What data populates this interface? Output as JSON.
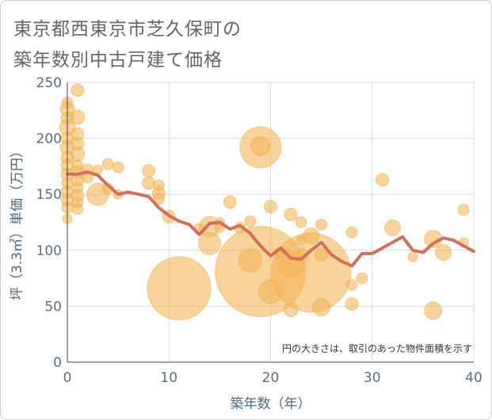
{
  "title_line1": "東京都西東京市芝久保町の",
  "title_line2": "築年数別中古戸建て価格",
  "chart_data": {
    "type": "scatter",
    "xlabel": "築年数（年）",
    "ylabel": "坪（3.3㎡）単価（万円）",
    "xlim": [
      0,
      40
    ],
    "ylim": [
      0,
      250
    ],
    "xticks": [
      "0",
      "10",
      "20",
      "30",
      "40"
    ],
    "yticks": [
      "0",
      "50",
      "100",
      "150",
      "200",
      "250"
    ],
    "x_tick_values": [
      0,
      10,
      20,
      30,
      40
    ],
    "y_tick_values": [
      0,
      50,
      100,
      150,
      200,
      250
    ],
    "grid": true,
    "note": "円の大きさは、取引のあった物件面積を示す",
    "bubble_color": "#f5b55a",
    "line_color": "#d4705a",
    "bubbles": [
      {
        "x": 0,
        "y": 232,
        "r": 7
      },
      {
        "x": 0,
        "y": 226,
        "r": 9
      },
      {
        "x": 0,
        "y": 218,
        "r": 8
      },
      {
        "x": 0,
        "y": 210,
        "r": 10
      },
      {
        "x": 0,
        "y": 200,
        "r": 8
      },
      {
        "x": 0,
        "y": 192,
        "r": 9
      },
      {
        "x": 0,
        "y": 183,
        "r": 8
      },
      {
        "x": 0,
        "y": 176,
        "r": 8
      },
      {
        "x": 0,
        "y": 168,
        "r": 8
      },
      {
        "x": 0,
        "y": 160,
        "r": 7
      },
      {
        "x": 0,
        "y": 152,
        "r": 8
      },
      {
        "x": 0,
        "y": 145,
        "r": 8
      },
      {
        "x": 0,
        "y": 138,
        "r": 7
      },
      {
        "x": 0,
        "y": 128,
        "r": 6
      },
      {
        "x": 1,
        "y": 243,
        "r": 8
      },
      {
        "x": 1,
        "y": 219,
        "r": 9
      },
      {
        "x": 1,
        "y": 204,
        "r": 8
      },
      {
        "x": 1,
        "y": 195,
        "r": 8
      },
      {
        "x": 1,
        "y": 186,
        "r": 9
      },
      {
        "x": 1,
        "y": 176,
        "r": 7
      },
      {
        "x": 1,
        "y": 170,
        "r": 8
      },
      {
        "x": 1,
        "y": 163,
        "r": 8
      },
      {
        "x": 1,
        "y": 156,
        "r": 7
      },
      {
        "x": 1,
        "y": 149,
        "r": 8
      },
      {
        "x": 1,
        "y": 143,
        "r": 7
      },
      {
        "x": 1,
        "y": 137,
        "r": 7
      },
      {
        "x": 2,
        "y": 172,
        "r": 7
      },
      {
        "x": 2,
        "y": 165,
        "r": 7
      },
      {
        "x": 3,
        "y": 150,
        "r": 14
      },
      {
        "x": 3,
        "y": 172,
        "r": 6
      },
      {
        "x": 4,
        "y": 177,
        "r": 7
      },
      {
        "x": 4,
        "y": 155,
        "r": 7
      },
      {
        "x": 5,
        "y": 174,
        "r": 7
      },
      {
        "x": 5,
        "y": 150,
        "r": 6
      },
      {
        "x": 8,
        "y": 171,
        "r": 8
      },
      {
        "x": 8,
        "y": 160,
        "r": 8
      },
      {
        "x": 9,
        "y": 158,
        "r": 7
      },
      {
        "x": 9,
        "y": 151,
        "r": 8
      },
      {
        "x": 9,
        "y": 146,
        "r": 7
      },
      {
        "x": 10,
        "y": 130,
        "r": 8
      },
      {
        "x": 11,
        "y": 66,
        "r": 40
      },
      {
        "x": 13,
        "y": 119,
        "r": 7
      },
      {
        "x": 14,
        "y": 121,
        "r": 13
      },
      {
        "x": 14,
        "y": 106,
        "r": 14
      },
      {
        "x": 15,
        "y": 125,
        "r": 6
      },
      {
        "x": 15,
        "y": 120,
        "r": 6
      },
      {
        "x": 16,
        "y": 143,
        "r": 8
      },
      {
        "x": 17,
        "y": 120,
        "r": 7
      },
      {
        "x": 18,
        "y": 126,
        "r": 7
      },
      {
        "x": 18,
        "y": 91,
        "r": 15
      },
      {
        "x": 19,
        "y": 192,
        "r": 26
      },
      {
        "x": 19,
        "y": 193,
        "r": 12
      },
      {
        "x": 19,
        "y": 81,
        "r": 57
      },
      {
        "x": 20,
        "y": 139,
        "r": 8
      },
      {
        "x": 20,
        "y": 63,
        "r": 15
      },
      {
        "x": 21,
        "y": 95,
        "r": 7
      },
      {
        "x": 21,
        "y": 98,
        "r": 7
      },
      {
        "x": 22,
        "y": 132,
        "r": 8
      },
      {
        "x": 22,
        "y": 88,
        "r": 17
      },
      {
        "x": 22,
        "y": 47,
        "r": 9
      },
      {
        "x": 23,
        "y": 125,
        "r": 7
      },
      {
        "x": 23,
        "y": 95,
        "r": 9
      },
      {
        "x": 23,
        "y": 109,
        "r": 6
      },
      {
        "x": 24,
        "y": 80,
        "r": 50
      },
      {
        "x": 24,
        "y": 113,
        "r": 10
      },
      {
        "x": 25,
        "y": 123,
        "r": 7
      },
      {
        "x": 25,
        "y": 49,
        "r": 11
      },
      {
        "x": 25,
        "y": 96,
        "r": 8
      },
      {
        "x": 28,
        "y": 116,
        "r": 7
      },
      {
        "x": 28,
        "y": 69,
        "r": 7
      },
      {
        "x": 28,
        "y": 52,
        "r": 8
      },
      {
        "x": 29,
        "y": 75,
        "r": 7
      },
      {
        "x": 31,
        "y": 163,
        "r": 8
      },
      {
        "x": 32,
        "y": 120,
        "r": 10
      },
      {
        "x": 34,
        "y": 94,
        "r": 6
      },
      {
        "x": 36,
        "y": 110,
        "r": 11
      },
      {
        "x": 36,
        "y": 46,
        "r": 11
      },
      {
        "x": 37,
        "y": 98,
        "r": 10
      },
      {
        "x": 39,
        "y": 136,
        "r": 7
      },
      {
        "x": 39,
        "y": 107,
        "r": 6
      }
    ],
    "line": {
      "x": [
        0,
        1,
        2,
        3,
        4,
        5,
        6,
        7,
        8,
        9,
        10,
        11,
        12,
        13,
        14,
        15,
        16,
        17,
        18,
        19,
        20,
        21,
        22,
        23,
        24,
        25,
        26,
        27,
        28,
        29,
        30,
        31,
        32,
        33,
        34,
        35,
        36,
        37,
        38,
        39,
        40
      ],
      "y": [
        168,
        168,
        170,
        167,
        158,
        150,
        152,
        150,
        148,
        138,
        131,
        126,
        123,
        114,
        124,
        125,
        119,
        122,
        115,
        104,
        95,
        102,
        93,
        92,
        100,
        107,
        96,
        90,
        86,
        97,
        97,
        102,
        107,
        112,
        100,
        98,
        106,
        111,
        109,
        104,
        99
      ]
    }
  }
}
